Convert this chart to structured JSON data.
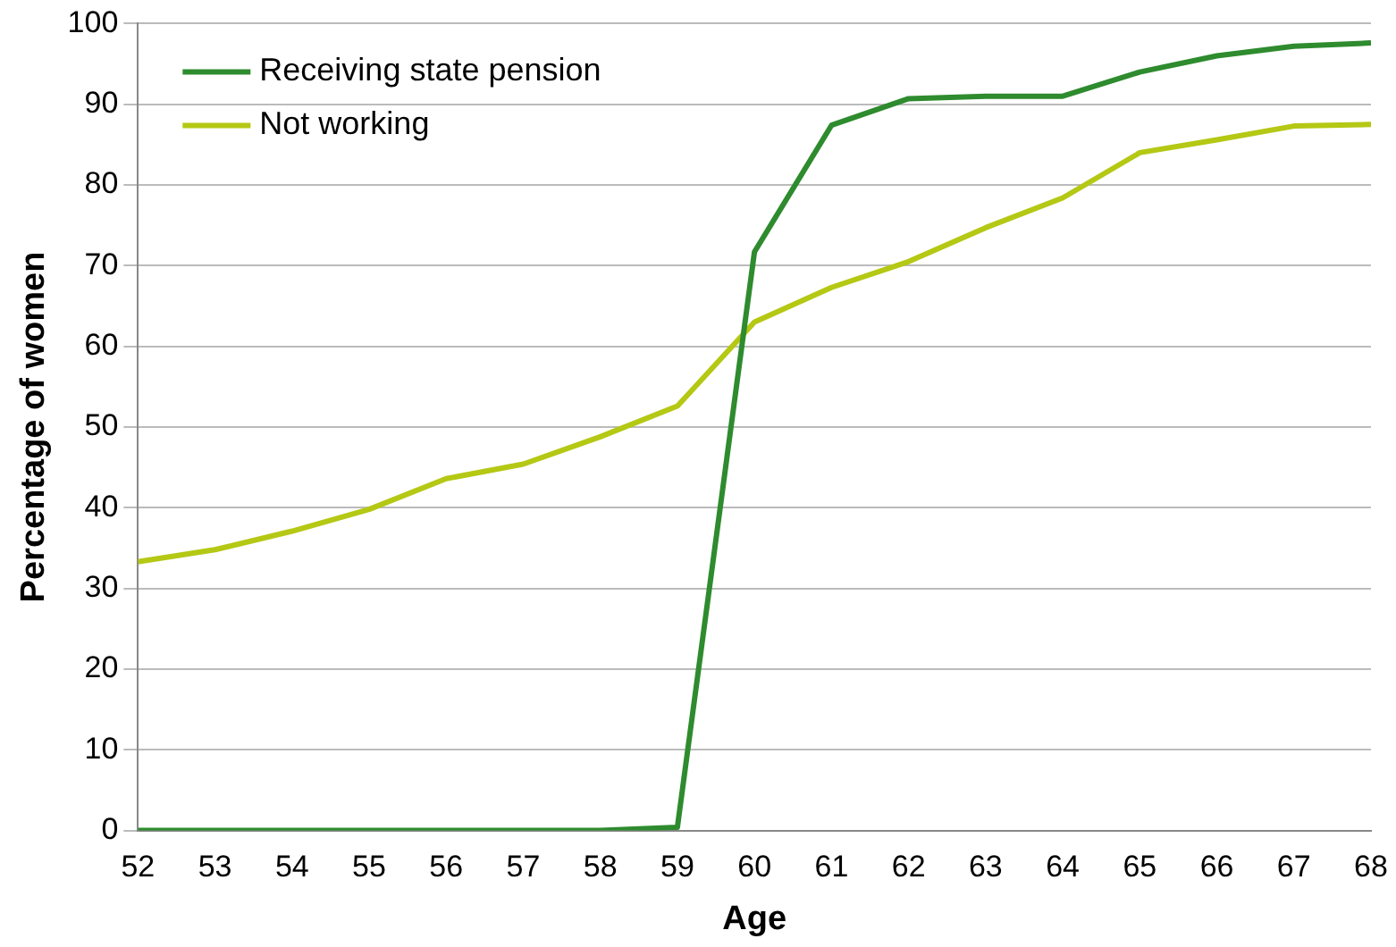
{
  "chart_data": {
    "type": "line",
    "xlabel": "Age",
    "ylabel": "Percentage of women",
    "x": [
      52,
      53,
      54,
      55,
      56,
      57,
      58,
      59,
      60,
      61,
      62,
      63,
      64,
      65,
      66,
      67,
      68
    ],
    "series": [
      {
        "name": "Receiving state pension",
        "color": "#2e8b2e",
        "values": [
          0,
          0,
          0,
          0,
          0,
          0,
          0,
          0.4,
          71.7,
          87.4,
          90.7,
          91,
          91,
          94,
          96,
          97.2,
          97.6
        ]
      },
      {
        "name": "Not working",
        "color": "#b4c814",
        "values": [
          33.3,
          34.8,
          37.1,
          39.8,
          43.6,
          45.4,
          48.8,
          52.6,
          63,
          67.3,
          70.5,
          74.7,
          78.4,
          84,
          85.6,
          87.3,
          87.5
        ]
      }
    ],
    "xlim": [
      52,
      68
    ],
    "xticks": [
      52,
      53,
      54,
      55,
      56,
      57,
      58,
      59,
      60,
      61,
      62,
      63,
      64,
      65,
      66,
      67,
      68
    ],
    "ylim": [
      0,
      100
    ],
    "yticks": [
      0,
      10,
      20,
      30,
      40,
      50,
      60,
      70,
      80,
      90,
      100
    ],
    "grid": "y",
    "legend": "top left",
    "marker": "none",
    "line_style": "solid"
  }
}
